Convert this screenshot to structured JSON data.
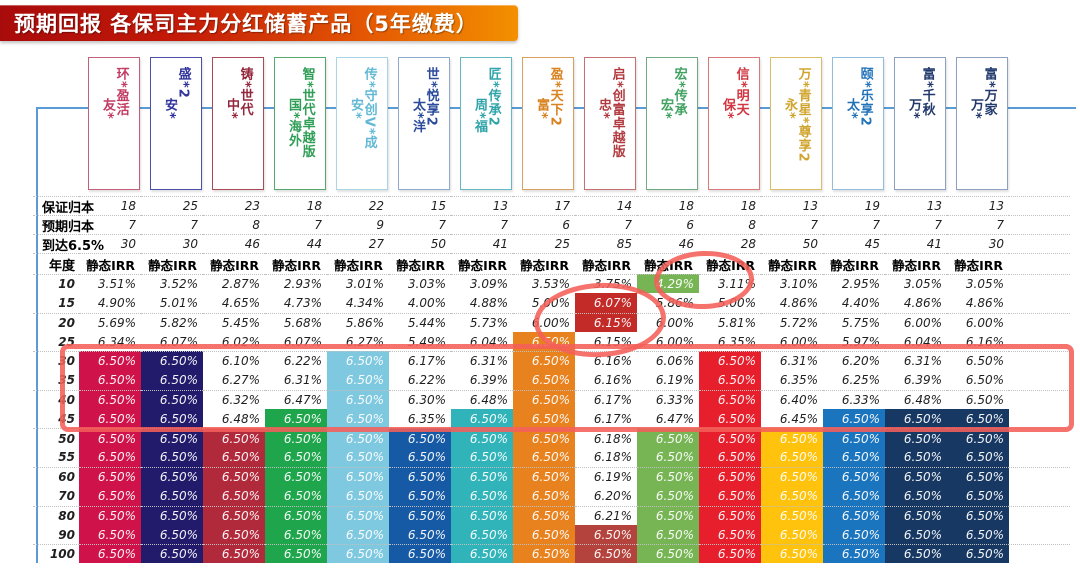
{
  "title": "预期回报 各保司主力分红储蓄产品（5年缴费）",
  "row_labels": {
    "guaranteed": "保证归本",
    "expected": "预期归本",
    "reach": "到达6.5%",
    "year": "年度",
    "irr_header": "静态IRR"
  },
  "colors": {
    "axis_blue": "#5b9bd5",
    "annotation_red": "#f45f59",
    "banner_left": "#a80b0b",
    "banner_right": "#f39000"
  },
  "chart_data": {
    "type": "table",
    "title": "预期回报 各保司主力分红储蓄产品（5年缴费）",
    "products": [
      {
        "sub": "友*",
        "main": "环*盈活",
        "border": "#c45f7b",
        "text": "#c23b63",
        "fill": "#cf1249"
      },
      {
        "sub": "安*",
        "main": "盛*2",
        "border": "#4c50a8",
        "text": "#30339c",
        "fill": "#221a6b"
      },
      {
        "sub": "中*",
        "main": "铸*世代",
        "border": "#a84b56",
        "text": "#94273c",
        "fill": "#b12a3c"
      },
      {
        "sub": "国*海外",
        "main": "智*世代卓越版",
        "border": "#56a86f",
        "text": "#2f9e56",
        "fill": "#1fa64c"
      },
      {
        "sub": "安*",
        "main": "传*守创V*成",
        "border": "#a9d5e5",
        "text": "#63b9d5",
        "fill": "#7ec8e0"
      },
      {
        "sub": "太*洋",
        "main": "世*悦享2",
        "border": "#90a9cd",
        "text": "#2c4b9c",
        "fill": "#1659a4"
      },
      {
        "sub": "周*福",
        "main": "匠*传承2",
        "border": "#63b9bd",
        "text": "#30a4a9",
        "fill": "#31b4b9"
      },
      {
        "sub": "富*",
        "main": "盈*天下2",
        "border": "#d9a161",
        "text": "#d98220",
        "fill": "#e8821f"
      },
      {
        "sub": "忠*",
        "main": "启*创富卓越版",
        "border": "#c57171",
        "text": "#b13b40",
        "fill": "#b4433d"
      },
      {
        "sub": "宏*",
        "main": "宏*传承",
        "border": "#71ab81",
        "text": "#40a160",
        "fill": "#77b554"
      },
      {
        "sub": "保*",
        "main": "信*明天",
        "border": "#d97979",
        "text": "#d13641",
        "fill": "#e71e2b"
      },
      {
        "sub": "永*",
        "main": "万*青星*尊享2",
        "border": "#d9bd6b",
        "text": "#d0a52f",
        "fill": "#ffc30d"
      },
      {
        "sub": "太*",
        "main": "颐*乐享2",
        "border": "#93bddd",
        "text": "#2373b9",
        "fill": "#1a74be"
      },
      {
        "sub": "万*",
        "main": "富*千秋",
        "border": "#8da1bf",
        "text": "#22396c",
        "fill": "#173863"
      },
      {
        "sub": "万*",
        "main": "富*万家",
        "border": "#8da1bf",
        "text": "#22396c",
        "fill": "#173863"
      }
    ],
    "guaranteed_breakeven_years": [
      18,
      25,
      23,
      18,
      22,
      15,
      13,
      17,
      14,
      18,
      18,
      13,
      19,
      13,
      13
    ],
    "expected_breakeven_years": [
      7,
      7,
      8,
      7,
      9,
      7,
      7,
      6,
      7,
      6,
      8,
      7,
      7,
      7,
      7
    ],
    "years_to_reach_6_5pct": [
      30,
      30,
      46,
      44,
      27,
      50,
      41,
      25,
      85,
      46,
      28,
      50,
      45,
      41,
      30
    ],
    "years": [
      10,
      15,
      20,
      25,
      30,
      35,
      40,
      45,
      50,
      55,
      60,
      70,
      80,
      90,
      100
    ],
    "irr_pct": {
      "10": [
        3.51,
        3.52,
        2.87,
        2.93,
        3.01,
        3.03,
        3.09,
        3.53,
        3.75,
        4.29,
        3.11,
        3.1,
        2.95,
        3.05,
        3.05
      ],
      "15": [
        4.9,
        5.01,
        4.65,
        4.73,
        4.34,
        4.0,
        4.88,
        5.0,
        6.07,
        5.86,
        5.0,
        4.86,
        4.4,
        4.86,
        4.86
      ],
      "20": [
        5.69,
        5.82,
        5.45,
        5.68,
        5.86,
        5.44,
        5.73,
        6.0,
        6.15,
        6.0,
        5.81,
        5.72,
        5.75,
        6.0,
        6.0
      ],
      "25": [
        6.34,
        6.07,
        6.02,
        6.07,
        6.27,
        5.49,
        6.04,
        6.5,
        6.15,
        6.0,
        6.35,
        6.0,
        5.97,
        6.04,
        6.16
      ],
      "30": [
        6.5,
        6.5,
        6.1,
        6.22,
        6.5,
        6.17,
        6.31,
        6.5,
        6.16,
        6.06,
        6.5,
        6.31,
        6.2,
        6.31,
        6.5
      ],
      "35": [
        6.5,
        6.5,
        6.27,
        6.31,
        6.5,
        6.22,
        6.39,
        6.5,
        6.16,
        6.19,
        6.5,
        6.35,
        6.25,
        6.39,
        6.5
      ],
      "40": [
        6.5,
        6.5,
        6.32,
        6.47,
        6.5,
        6.3,
        6.48,
        6.5,
        6.17,
        6.33,
        6.5,
        6.4,
        6.33,
        6.48,
        6.5
      ],
      "45": [
        6.5,
        6.5,
        6.48,
        6.5,
        6.5,
        6.35,
        6.5,
        6.5,
        6.17,
        6.47,
        6.5,
        6.45,
        6.5,
        6.5,
        6.5
      ],
      "50": [
        6.5,
        6.5,
        6.5,
        6.5,
        6.5,
        6.5,
        6.5,
        6.5,
        6.18,
        6.5,
        6.5,
        6.5,
        6.5,
        6.5,
        6.5
      ],
      "55": [
        6.5,
        6.5,
        6.5,
        6.5,
        6.5,
        6.5,
        6.5,
        6.5,
        6.18,
        6.5,
        6.5,
        6.5,
        6.5,
        6.5,
        6.5
      ],
      "60": [
        6.5,
        6.5,
        6.5,
        6.5,
        6.5,
        6.5,
        6.5,
        6.5,
        6.19,
        6.5,
        6.5,
        6.5,
        6.5,
        6.5,
        6.5
      ],
      "70": [
        6.5,
        6.5,
        6.5,
        6.5,
        6.5,
        6.5,
        6.5,
        6.5,
        6.2,
        6.5,
        6.5,
        6.5,
        6.5,
        6.5,
        6.5
      ],
      "80": [
        6.5,
        6.5,
        6.5,
        6.5,
        6.5,
        6.5,
        6.5,
        6.5,
        6.21,
        6.5,
        6.5,
        6.5,
        6.5,
        6.5,
        6.5
      ],
      "90": [
        6.5,
        6.5,
        6.5,
        6.5,
        6.5,
        6.5,
        6.5,
        6.5,
        6.5,
        6.5,
        6.5,
        6.5,
        6.5,
        6.5,
        6.5
      ],
      "100": [
        6.5,
        6.5,
        6.5,
        6.5,
        6.5,
        6.5,
        6.5,
        6.5,
        6.5,
        6.5,
        6.5,
        6.5,
        6.5,
        6.5,
        6.5
      ]
    },
    "cell_highlights": [
      {
        "col": 0,
        "color": "#cf1249",
        "years": [
          30,
          35,
          40,
          45,
          50,
          55,
          60,
          70,
          80,
          90,
          100
        ]
      },
      {
        "col": 1,
        "color": "#221a6b",
        "years": [
          30,
          35,
          40,
          45,
          50,
          55,
          60,
          70,
          80,
          90,
          100
        ]
      },
      {
        "col": 2,
        "color": "#b12a3c",
        "years": [
          50,
          55,
          60,
          70,
          80,
          90,
          100
        ]
      },
      {
        "col": 3,
        "color": "#1fa64c",
        "years": [
          45,
          50,
          55,
          60,
          70,
          80,
          90,
          100
        ]
      },
      {
        "col": 4,
        "color": "#7ec8e0",
        "years": [
          30,
          35,
          40,
          45,
          50,
          55,
          60,
          70,
          80,
          90,
          100
        ]
      },
      {
        "col": 5,
        "color": "#1659a4",
        "years": [
          50,
          55,
          60,
          70,
          80,
          90,
          100
        ]
      },
      {
        "col": 6,
        "color": "#31b4b9",
        "years": [
          45,
          50,
          55,
          60,
          70,
          80,
          90,
          100
        ]
      },
      {
        "col": 7,
        "color": "#e8821f",
        "years": [
          25,
          30,
          35,
          40,
          45,
          50,
          55,
          60,
          70,
          80,
          90,
          100
        ]
      },
      {
        "col": 8,
        "color": "#c32b28",
        "years": [
          15,
          20
        ]
      },
      {
        "col": 8,
        "color": "#b4433d",
        "years": [
          90,
          100
        ]
      },
      {
        "col": 9,
        "color": "#77b554",
        "years": [
          10,
          50,
          55,
          60,
          70,
          80,
          90,
          100
        ]
      },
      {
        "col": 10,
        "color": "#e71e2b",
        "years": [
          30,
          35,
          40,
          45,
          50,
          55,
          60,
          70,
          80,
          90,
          100
        ]
      },
      {
        "col": 11,
        "color": "#ffc30d",
        "years": [
          50,
          55,
          60,
          70,
          80,
          90,
          100
        ]
      },
      {
        "col": 12,
        "color": "#1a74be",
        "years": [
          45,
          50,
          55,
          60,
          70,
          80,
          90,
          100
        ]
      },
      {
        "col": 13,
        "color": "#173863",
        "years": [
          45,
          50,
          55,
          60,
          70,
          80,
          90,
          100
        ]
      },
      {
        "col": 14,
        "color": "#173863",
        "years": [
          45,
          50,
          55,
          60,
          70,
          80,
          90,
          100
        ]
      }
    ],
    "annotations": {
      "highlight_rect_rows": [
        30,
        35,
        40,
        45
      ],
      "circle_1_region": "启*创富卓越版 15-25年 IRR",
      "circle_2_region": "宏*传承 10年 IRR 4.29%"
    }
  }
}
